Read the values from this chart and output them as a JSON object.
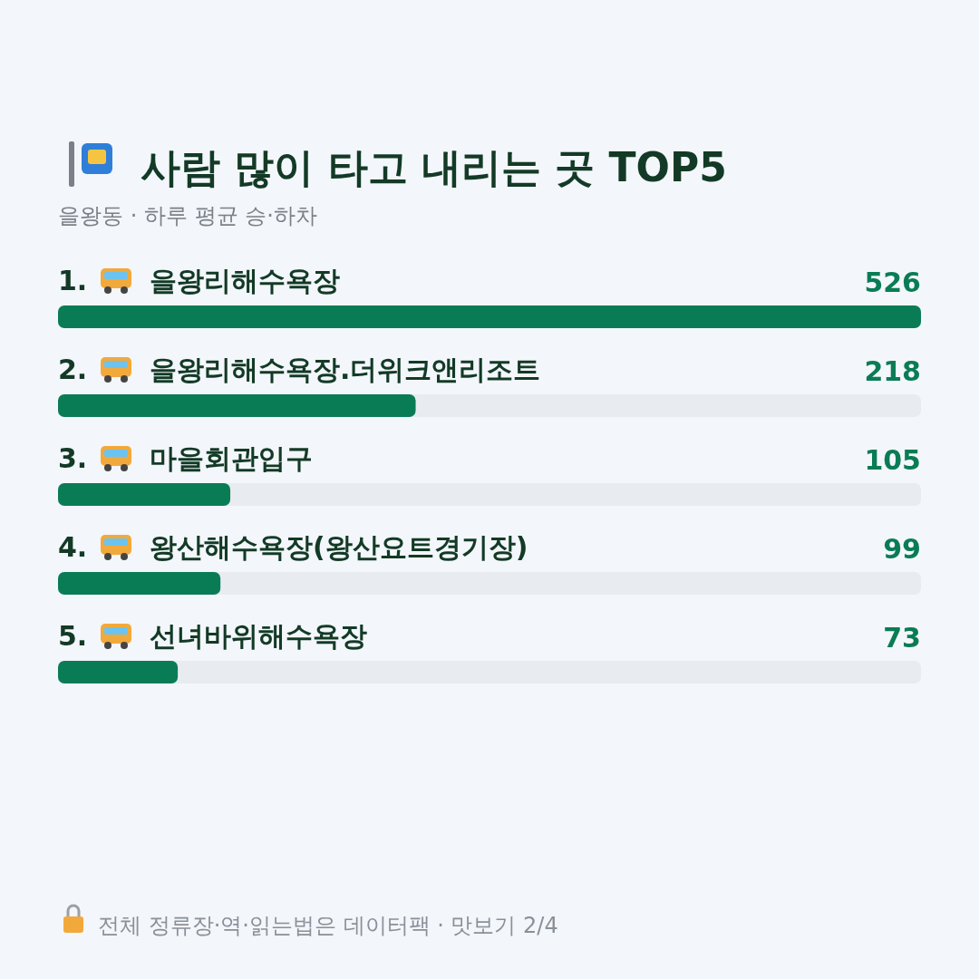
{
  "chart_data": {
    "type": "bar",
    "orientation": "horizontal",
    "title": "사람 많이 타고 내리는 곳 TOP5",
    "subtitle": "을왕동 · 하루 평균 승·하차",
    "categories": [
      "1. 을왕리해수욕장",
      "2. 을왕리해수욕장.더위크앤리조트",
      "3. 마을회관입구",
      "4. 왕산해수욕장(왕산요트경기장)",
      "5. 선녀바위해수욕장"
    ],
    "values": [
      526,
      218,
      105,
      99,
      73
    ],
    "color": "#0a7c55",
    "data_labels": true,
    "annotations": [
      "전체 정류장·역·읽는법은 데이터팩 · 맛보기 2/4"
    ]
  }
}
